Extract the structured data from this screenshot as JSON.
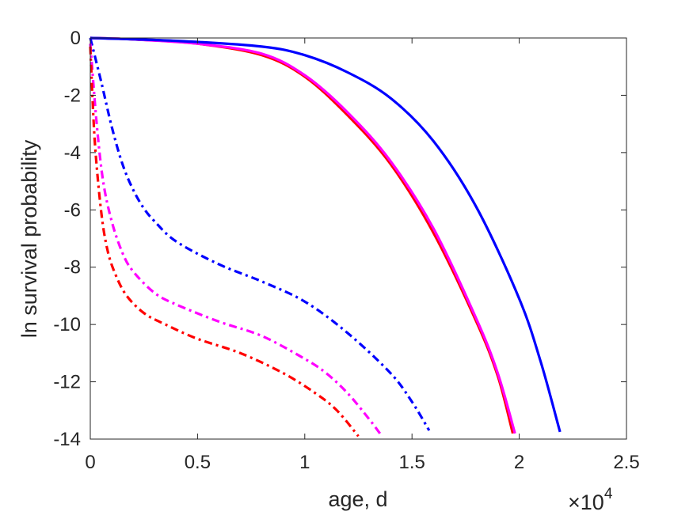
{
  "chart_data": {
    "type": "line",
    "title": "",
    "xlabel": "age, d",
    "ylabel": "ln survival probability",
    "x_exponent_label": "×10",
    "x_exponent_power": "4",
    "xlim": [
      0,
      25000
    ],
    "ylim": [
      -14,
      0
    ],
    "x_ticks": [
      0,
      5000,
      10000,
      15000,
      20000,
      25000
    ],
    "x_tick_labels": [
      "0",
      "0.5",
      "1",
      "1.5",
      "2",
      "2.5"
    ],
    "y_ticks": [
      0,
      -2,
      -4,
      -6,
      -8,
      -10,
      -12,
      -14
    ],
    "y_tick_labels": [
      "0",
      "-2",
      "-4",
      "-6",
      "-8",
      "-10",
      "-12",
      "-14"
    ],
    "grid": false,
    "legend": false,
    "series": [
      {
        "color": "#ff0000",
        "style": "solid",
        "x": [
          0,
          2000,
          5000,
          8000,
          10000,
          12000,
          14000,
          16000,
          18000,
          19000,
          19700
        ],
        "y": [
          0,
          -0.05,
          -0.2,
          -0.6,
          -1.35,
          -2.7,
          -4.4,
          -6.8,
          -9.9,
          -11.8,
          -13.8
        ]
      },
      {
        "color": "#ff00ff",
        "style": "solid",
        "x": [
          0,
          2000,
          5000,
          8000,
          10000,
          12000,
          14000,
          16000,
          18000,
          19000,
          19800
        ],
        "y": [
          0,
          -0.05,
          -0.2,
          -0.55,
          -1.3,
          -2.6,
          -4.3,
          -6.65,
          -9.8,
          -11.7,
          -13.8
        ]
      },
      {
        "color": "#0000ff",
        "style": "solid",
        "x": [
          0,
          4000,
          8000,
          10000,
          12000,
          14000,
          16000,
          18000,
          20000,
          21000,
          21900
        ],
        "y": [
          0,
          -0.1,
          -0.3,
          -0.6,
          -1.2,
          -2.1,
          -3.6,
          -5.9,
          -9.1,
          -11.3,
          -13.75
        ]
      },
      {
        "color": "#0000ff",
        "style": "dashdot",
        "x": [
          0,
          500,
          1000,
          1500,
          2000,
          2500,
          3000,
          4000,
          6000,
          8000,
          10000,
          12000,
          14000,
          15000,
          15800
        ],
        "y": [
          0,
          -1.5,
          -3.1,
          -4.4,
          -5.3,
          -5.95,
          -6.4,
          -7.1,
          -7.9,
          -8.5,
          -9.2,
          -10.3,
          -11.7,
          -12.7,
          -13.7
        ]
      },
      {
        "color": "#ff00ff",
        "style": "dashdot",
        "x": [
          0,
          300,
          600,
          1000,
          1500,
          2000,
          3000,
          4000,
          6000,
          8000,
          10000,
          11000,
          12000,
          13000,
          13600
        ],
        "y": [
          -0.2,
          -3.0,
          -5.0,
          -6.4,
          -7.5,
          -8.15,
          -8.9,
          -9.3,
          -9.9,
          -10.4,
          -11.2,
          -11.7,
          -12.4,
          -13.3,
          -13.9
        ]
      },
      {
        "color": "#ff0000",
        "style": "dashdot",
        "x": [
          0,
          200,
          500,
          800,
          1200,
          1700,
          2500,
          3500,
          5000,
          7000,
          9000,
          10500,
          11500,
          12500
        ],
        "y": [
          -0.3,
          -3.5,
          -6.0,
          -7.4,
          -8.3,
          -9.0,
          -9.6,
          -10.0,
          -10.5,
          -11.0,
          -11.7,
          -12.4,
          -13.0,
          -13.9
        ]
      }
    ]
  }
}
